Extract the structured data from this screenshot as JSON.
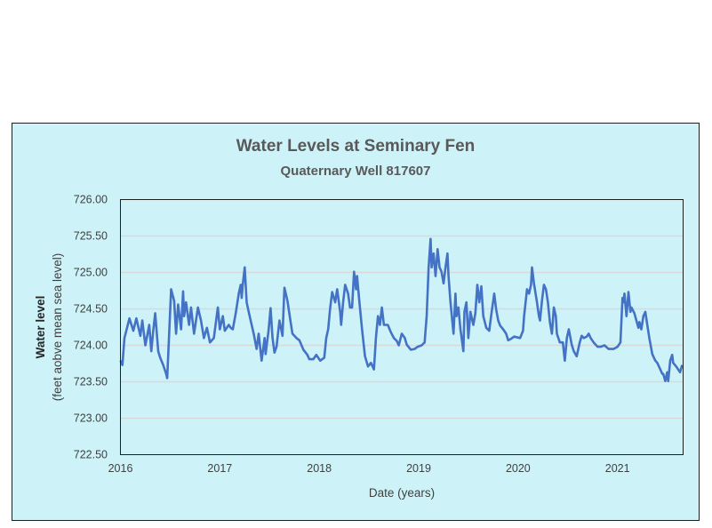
{
  "chart_data": {
    "type": "line",
    "title": "Water Levels at Seminary Fen",
    "subtitle": "Quaternary Well 817607",
    "xlabel": "Date (years)",
    "ylabel": "Water level",
    "ylabel_sub": "(feet aobve mean sea level)",
    "xlim": [
      2016,
      2021.66
    ],
    "ylim": [
      722.5,
      726.0
    ],
    "xticks": [
      2016,
      2017,
      2018,
      2019,
      2020,
      2021
    ],
    "xtick_labels": [
      "2016",
      "2017",
      "2018",
      "2019",
      "2020",
      "2021"
    ],
    "yticks": [
      722.5,
      723.0,
      723.5,
      724.0,
      724.5,
      725.0,
      725.5,
      726.0
    ],
    "ytick_labels": [
      "722.50",
      "723.00",
      "723.50",
      "724.00",
      "724.50",
      "725.00",
      "725.50",
      "726.00"
    ],
    "grid": true,
    "legend": "none",
    "colors": {
      "line": "#4472c4",
      "background": "#cdf3f9",
      "grid": "#d9d9d9"
    },
    "series": [
      {
        "name": "Water level",
        "points": [
          [
            2016.0,
            723.79
          ],
          [
            2016.02,
            723.73
          ],
          [
            2016.04,
            724.1
          ],
          [
            2016.09,
            724.37
          ],
          [
            2016.13,
            724.2
          ],
          [
            2016.16,
            724.37
          ],
          [
            2016.2,
            724.13
          ],
          [
            2016.22,
            724.34
          ],
          [
            2016.25,
            724.0
          ],
          [
            2016.29,
            724.28
          ],
          [
            2016.31,
            723.92
          ],
          [
            2016.33,
            724.2
          ],
          [
            2016.35,
            724.44
          ],
          [
            2016.38,
            723.92
          ],
          [
            2016.4,
            723.83
          ],
          [
            2016.43,
            723.73
          ],
          [
            2016.46,
            723.61
          ],
          [
            2016.47,
            723.55
          ],
          [
            2016.49,
            724.16
          ],
          [
            2016.51,
            724.77
          ],
          [
            2016.54,
            724.61
          ],
          [
            2016.56,
            724.16
          ],
          [
            2016.58,
            724.56
          ],
          [
            2016.61,
            724.22
          ],
          [
            2016.63,
            724.74
          ],
          [
            2016.64,
            724.4
          ],
          [
            2016.66,
            724.59
          ],
          [
            2016.69,
            724.28
          ],
          [
            2016.71,
            724.52
          ],
          [
            2016.74,
            724.16
          ],
          [
            2016.78,
            724.52
          ],
          [
            2016.81,
            724.34
          ],
          [
            2016.84,
            724.1
          ],
          [
            2016.87,
            724.24
          ],
          [
            2016.9,
            724.04
          ],
          [
            2016.94,
            724.1
          ],
          [
            2016.96,
            724.32
          ],
          [
            2016.98,
            724.52
          ],
          [
            2017.0,
            724.22
          ],
          [
            2017.03,
            724.4
          ],
          [
            2017.05,
            724.2
          ],
          [
            2017.09,
            724.28
          ],
          [
            2017.11,
            724.24
          ],
          [
            2017.13,
            724.22
          ],
          [
            2017.16,
            724.44
          ],
          [
            2017.19,
            724.71
          ],
          [
            2017.21,
            724.83
          ],
          [
            2017.22,
            724.65
          ],
          [
            2017.23,
            724.83
          ],
          [
            2017.25,
            725.07
          ],
          [
            2017.27,
            724.59
          ],
          [
            2017.29,
            724.46
          ],
          [
            2017.31,
            724.34
          ],
          [
            2017.34,
            724.16
          ],
          [
            2017.37,
            723.95
          ],
          [
            2017.39,
            724.16
          ],
          [
            2017.42,
            723.79
          ],
          [
            2017.45,
            724.1
          ],
          [
            2017.46,
            723.88
          ],
          [
            2017.49,
            724.2
          ],
          [
            2017.51,
            724.51
          ],
          [
            2017.53,
            724.1
          ],
          [
            2017.55,
            723.9
          ],
          [
            2017.57,
            723.98
          ],
          [
            2017.6,
            724.34
          ],
          [
            2017.63,
            724.13
          ],
          [
            2017.65,
            724.79
          ],
          [
            2017.68,
            724.61
          ],
          [
            2017.71,
            724.34
          ],
          [
            2017.73,
            724.16
          ],
          [
            2017.77,
            724.1
          ],
          [
            2017.8,
            724.07
          ],
          [
            2017.84,
            723.94
          ],
          [
            2017.88,
            723.87
          ],
          [
            2017.9,
            723.81
          ],
          [
            2017.94,
            723.81
          ],
          [
            2017.97,
            723.87
          ],
          [
            2018.01,
            723.79
          ],
          [
            2018.05,
            723.83
          ],
          [
            2018.07,
            724.1
          ],
          [
            2018.09,
            724.22
          ],
          [
            2018.11,
            724.52
          ],
          [
            2018.13,
            724.73
          ],
          [
            2018.16,
            724.59
          ],
          [
            2018.18,
            724.77
          ],
          [
            2018.21,
            724.46
          ],
          [
            2018.22,
            724.28
          ],
          [
            2018.24,
            724.59
          ],
          [
            2018.26,
            724.83
          ],
          [
            2018.29,
            724.71
          ],
          [
            2018.31,
            724.52
          ],
          [
            2018.33,
            724.52
          ],
          [
            2018.35,
            725.01
          ],
          [
            2018.37,
            724.77
          ],
          [
            2018.38,
            724.95
          ],
          [
            2018.4,
            724.65
          ],
          [
            2018.43,
            724.22
          ],
          [
            2018.46,
            723.85
          ],
          [
            2018.49,
            723.71
          ],
          [
            2018.52,
            723.76
          ],
          [
            2018.55,
            723.67
          ],
          [
            2018.57,
            724.1
          ],
          [
            2018.59,
            724.4
          ],
          [
            2018.61,
            724.28
          ],
          [
            2018.63,
            724.52
          ],
          [
            2018.65,
            724.28
          ],
          [
            2018.69,
            724.28
          ],
          [
            2018.72,
            724.18
          ],
          [
            2018.75,
            724.1
          ],
          [
            2018.78,
            724.06
          ],
          [
            2018.8,
            724.0
          ],
          [
            2018.83,
            724.16
          ],
          [
            2018.86,
            724.1
          ],
          [
            2018.88,
            724.01
          ],
          [
            2018.92,
            723.94
          ],
          [
            2018.96,
            723.95
          ],
          [
            2018.99,
            723.98
          ],
          [
            2019.03,
            724.0
          ],
          [
            2019.06,
            724.04
          ],
          [
            2019.08,
            724.4
          ],
          [
            2019.1,
            725.07
          ],
          [
            2019.12,
            725.46
          ],
          [
            2019.13,
            725.07
          ],
          [
            2019.15,
            725.26
          ],
          [
            2019.17,
            724.95
          ],
          [
            2019.19,
            725.32
          ],
          [
            2019.21,
            725.07
          ],
          [
            2019.23,
            725.01
          ],
          [
            2019.25,
            724.85
          ],
          [
            2019.27,
            725.07
          ],
          [
            2019.29,
            725.26
          ],
          [
            2019.3,
            724.95
          ],
          [
            2019.32,
            724.59
          ],
          [
            2019.35,
            724.16
          ],
          [
            2019.37,
            724.71
          ],
          [
            2019.38,
            724.4
          ],
          [
            2019.4,
            724.52
          ],
          [
            2019.42,
            724.22
          ],
          [
            2019.45,
            723.92
          ],
          [
            2019.46,
            724.46
          ],
          [
            2019.48,
            724.59
          ],
          [
            2019.5,
            724.1
          ],
          [
            2019.52,
            724.46
          ],
          [
            2019.55,
            724.28
          ],
          [
            2019.57,
            724.44
          ],
          [
            2019.59,
            724.83
          ],
          [
            2019.61,
            724.59
          ],
          [
            2019.63,
            724.81
          ],
          [
            2019.65,
            724.4
          ],
          [
            2019.68,
            724.24
          ],
          [
            2019.71,
            724.2
          ],
          [
            2019.73,
            724.42
          ],
          [
            2019.76,
            724.71
          ],
          [
            2019.78,
            724.49
          ],
          [
            2019.8,
            724.34
          ],
          [
            2019.82,
            724.27
          ],
          [
            2019.85,
            724.22
          ],
          [
            2019.88,
            724.16
          ],
          [
            2019.9,
            724.07
          ],
          [
            2019.93,
            724.09
          ],
          [
            2019.96,
            724.12
          ],
          [
            2020.02,
            724.1
          ],
          [
            2020.05,
            724.2
          ],
          [
            2020.06,
            724.4
          ],
          [
            2020.09,
            724.77
          ],
          [
            2020.11,
            724.71
          ],
          [
            2020.13,
            724.83
          ],
          [
            2020.14,
            725.07
          ],
          [
            2020.16,
            724.85
          ],
          [
            2020.19,
            724.59
          ],
          [
            2020.21,
            724.4
          ],
          [
            2020.22,
            724.34
          ],
          [
            2020.24,
            724.61
          ],
          [
            2020.26,
            724.83
          ],
          [
            2020.28,
            724.77
          ],
          [
            2020.3,
            724.59
          ],
          [
            2020.32,
            724.32
          ],
          [
            2020.34,
            724.16
          ],
          [
            2020.36,
            724.52
          ],
          [
            2020.38,
            724.4
          ],
          [
            2020.39,
            724.16
          ],
          [
            2020.42,
            724.04
          ],
          [
            2020.45,
            724.04
          ],
          [
            2020.47,
            723.79
          ],
          [
            2020.49,
            724.1
          ],
          [
            2020.51,
            724.22
          ],
          [
            2020.54,
            724.01
          ],
          [
            2020.56,
            723.92
          ],
          [
            2020.59,
            723.85
          ],
          [
            2020.62,
            724.04
          ],
          [
            2020.64,
            724.13
          ],
          [
            2020.66,
            724.1
          ],
          [
            2020.69,
            724.12
          ],
          [
            2020.71,
            724.16
          ],
          [
            2020.73,
            724.1
          ],
          [
            2020.76,
            724.04
          ],
          [
            2020.8,
            723.98
          ],
          [
            2020.83,
            723.98
          ],
          [
            2020.87,
            724.0
          ],
          [
            2020.91,
            723.95
          ],
          [
            2020.96,
            723.95
          ],
          [
            2021.0,
            723.98
          ],
          [
            2021.03,
            724.04
          ],
          [
            2021.05,
            724.65
          ],
          [
            2021.06,
            724.59
          ],
          [
            2021.07,
            724.71
          ],
          [
            2021.09,
            724.4
          ],
          [
            2021.11,
            724.73
          ],
          [
            2021.13,
            724.46
          ],
          [
            2021.14,
            724.52
          ],
          [
            2021.17,
            724.44
          ],
          [
            2021.19,
            724.34
          ],
          [
            2021.21,
            724.24
          ],
          [
            2021.22,
            724.32
          ],
          [
            2021.24,
            724.22
          ],
          [
            2021.26,
            724.4
          ],
          [
            2021.28,
            724.46
          ],
          [
            2021.3,
            724.28
          ],
          [
            2021.32,
            724.1
          ],
          [
            2021.35,
            723.88
          ],
          [
            2021.38,
            723.79
          ],
          [
            2021.4,
            723.76
          ],
          [
            2021.42,
            723.7
          ],
          [
            2021.45,
            723.61
          ],
          [
            2021.46,
            723.61
          ],
          [
            2021.48,
            723.51
          ],
          [
            2021.5,
            723.63
          ],
          [
            2021.51,
            723.51
          ],
          [
            2021.53,
            723.79
          ],
          [
            2021.55,
            723.87
          ],
          [
            2021.56,
            723.76
          ],
          [
            2021.59,
            723.71
          ],
          [
            2021.63,
            723.63
          ],
          [
            2021.65,
            723.73
          ]
        ]
      }
    ]
  }
}
